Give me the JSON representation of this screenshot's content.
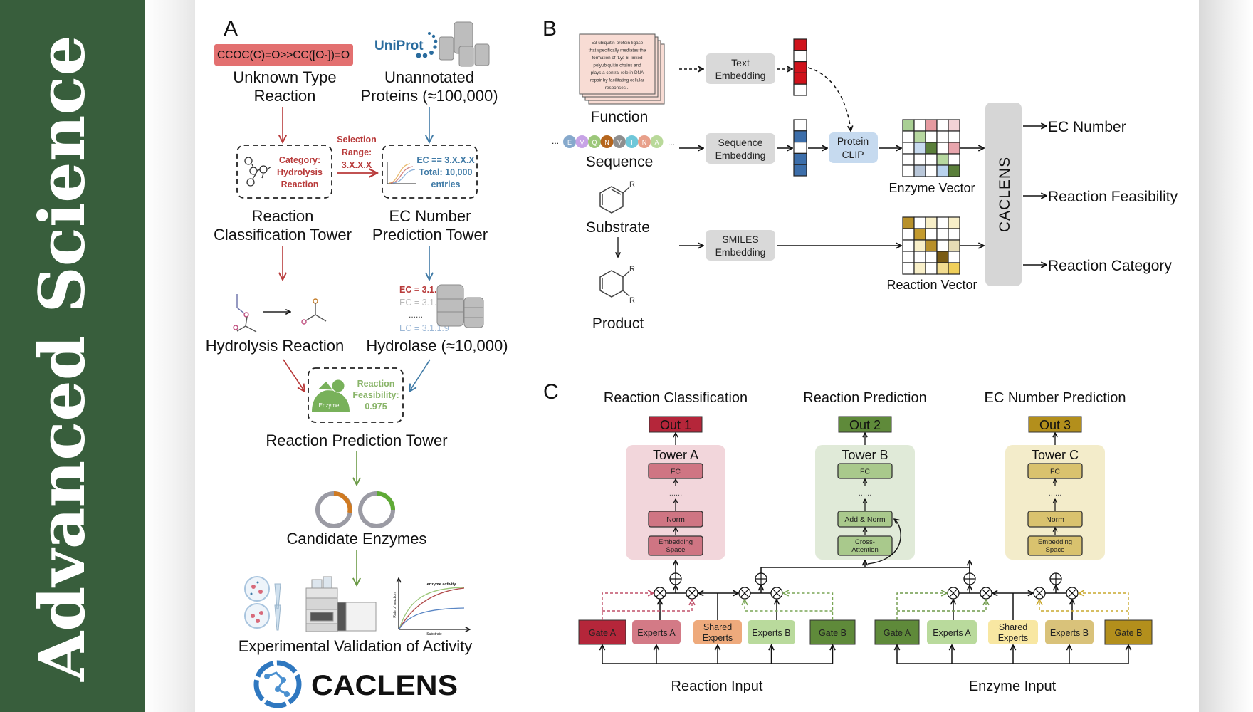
{
  "sidebar": {
    "journal_title": "Advanced  Science",
    "color": "#385e3c"
  },
  "panel_a": {
    "label": "A",
    "smiles": "CCOC(C)=O>>CC([O-])=O",
    "uniprot_logo": "UniProt",
    "unknown_reaction": [
      "Unknown Type",
      "Reaction"
    ],
    "unannotated_proteins": [
      "Unannotated",
      "Proteins (≈100,000)"
    ],
    "classification_box": [
      "Category:",
      "Hydrolysis",
      "Reaction"
    ],
    "selection_range": [
      "Selection",
      "Range:",
      "3.X.X.X"
    ],
    "ec_box": [
      "EC == 3.X.X.X",
      "Total: 10,000",
      "entries"
    ],
    "classification_tower": [
      "Reaction",
      "Classification Tower"
    ],
    "ec_tower": [
      "EC Number",
      "Prediction Tower"
    ],
    "ec_list": [
      "EC = 3.1.2.1",
      "EC = 3.1.2.6",
      "......",
      "EC = 3.1.1.9"
    ],
    "hydrolysis_reaction": "Hydrolysis Reaction",
    "hydrolase": "Hydrolase (≈10,000)",
    "feasibility_box": [
      "Reaction",
      "Feasibility:",
      "0.975"
    ],
    "enzyme_label": "Enzyme",
    "prediction_tower": "Reaction Prediction Tower",
    "candidate_enzymes": "Candidate Enzymes",
    "activity_chart": {
      "title": "enzyme activity",
      "xlabel": "Substrate",
      "ylabel": "Rate of reaction"
    },
    "validation": "Experimental Validation of Activity",
    "logo": "CACLENS",
    "colors": {
      "red": "#b83a3a",
      "blue": "#3f7aa6",
      "green": "#6a9a45",
      "smiles_bg": "#e37070"
    }
  },
  "panel_b": {
    "label": "B",
    "function_text": [
      "E3 ubiquitin-protein ligase",
      "that specifically mediates the",
      "formation of 'Lys-6'-linked",
      "polyubiquitin chains and",
      "plays a central role in DNA",
      "repair by facilitating cellular",
      "responses..."
    ],
    "function": "Function",
    "sequence": "Sequence",
    "residues": [
      "E",
      "V",
      "Q",
      "N",
      "V",
      "I",
      "N",
      "A"
    ],
    "residue_colors": [
      "#86a9cc",
      "#c7a3e6",
      "#9cc77a",
      "#b5651d",
      "#8e8e8e",
      "#6fc7d9",
      "#e8a08a",
      "#b9d99a"
    ],
    "ellipsis": "...",
    "substrate": "Substrate",
    "product": "Product",
    "r_group": "R",
    "text_embedding": [
      "Text",
      "Embedding"
    ],
    "sequence_embedding": [
      "Sequence",
      "Embedding"
    ],
    "smiles_embedding": [
      "SMILES",
      "Embedding"
    ],
    "protein_clip": [
      "Protein",
      "CLIP"
    ],
    "text_vector_cells": [
      "#d0121b",
      "#ffffff",
      "#d0121b",
      "#d0121b",
      "#ffffff"
    ],
    "sequence_vector_cells": [
      "#ffffff",
      "#3c6eaa",
      "#ffffff",
      "#3c6eaa",
      "#3c6eaa"
    ],
    "enzyme_vector_cells": [
      [
        "#a9cf94",
        "#ffffff",
        "#e59aa0",
        "#ffffff",
        "#f3d2d6"
      ],
      [
        "#ffffff",
        "#b7d8a0",
        "#ffffff",
        "#ffffff",
        "#ffffff"
      ],
      [
        "#ffffff",
        "#c8dbf0",
        "#5a7f3a",
        "#ffffff",
        "#e8a5ad"
      ],
      [
        "#ffffff",
        "#ffffff",
        "#ffffff",
        "#b7d8a0",
        "#ffffff"
      ],
      [
        "#ffffff",
        "#b9c7d9",
        "#ffffff",
        "#b9d3ee",
        "#5a7f3a"
      ]
    ],
    "reaction_vector_cells": [
      [
        "#b8912a",
        "#ffffff",
        "#f8efc8",
        "#ffffff",
        "#f8efc8"
      ],
      [
        "#ffffff",
        "#c39a2e",
        "#ffffff",
        "#ffffff",
        "#ffffff"
      ],
      [
        "#ffffff",
        "#f8efc8",
        "#b8902a",
        "#ffffff",
        "#e6dcb5"
      ],
      [
        "#ffffff",
        "#ffffff",
        "#ffffff",
        "#7a5c14",
        "#ffffff"
      ],
      [
        "#ffffff",
        "#f8efc8",
        "#ffffff",
        "#f2dc90",
        "#f0cf5a"
      ]
    ],
    "enzyme_vector": "Enzyme Vector",
    "reaction_vector": "Reaction Vector",
    "model": "CACLENS",
    "outputs": [
      "EC Number",
      "Reaction Feasibility",
      "Reaction Category"
    ]
  },
  "panel_c": {
    "label": "C",
    "towers": [
      {
        "header": "Reaction Classification",
        "out": "Out 1",
        "title": "Tower A",
        "layers": [
          "FC",
          "......",
          "Norm",
          [
            "Embedding",
            "Space"
          ]
        ],
        "out_color": "#b5263a",
        "bg_color": "#f2d6db",
        "layer_color": "#cf7583"
      },
      {
        "header": "Reaction Prediction",
        "out": "Out 2",
        "title": "Tower B",
        "layers": [
          "FC",
          "......",
          "Add & Norm",
          [
            "Cross-",
            "Attention"
          ]
        ],
        "out_color": "#5f8a3a",
        "bg_color": "#e0ead8",
        "layer_color": "#a9c98c"
      },
      {
        "header": "EC Number Prediction",
        "out": "Out 3",
        "title": "Tower C",
        "layers": [
          "FC",
          "......",
          "Norm",
          [
            "Embedding",
            "Space"
          ]
        ],
        "out_color": "#b38f1c",
        "bg_color": "#f3ecca",
        "layer_color": "#d9c26e"
      }
    ],
    "reaction_blocks": [
      {
        "label": [
          "Gate A"
        ],
        "color": "#b5263a"
      },
      {
        "label": [
          "Experts A"
        ],
        "color": "#d37a86"
      },
      {
        "label": [
          "Shared",
          "Experts"
        ],
        "color": "#eeaa7c"
      },
      {
        "label": [
          "Experts B"
        ],
        "color": "#b9da9c"
      },
      {
        "label": [
          "Gate B"
        ],
        "color": "#5f8a3a"
      }
    ],
    "enzyme_blocks": [
      {
        "label": [
          "Gate A"
        ],
        "color": "#5f8a3a"
      },
      {
        "label": [
          "Experts A"
        ],
        "color": "#b9da9c"
      },
      {
        "label": [
          "Shared",
          "Experts"
        ],
        "color": "#f8e7a2"
      },
      {
        "label": [
          "Experts B"
        ],
        "color": "#d9c27a"
      },
      {
        "label": [
          "Gate B"
        ],
        "color": "#b38f1c"
      }
    ],
    "reaction_input": "Reaction Input",
    "enzyme_input": "Enzyme Input"
  }
}
